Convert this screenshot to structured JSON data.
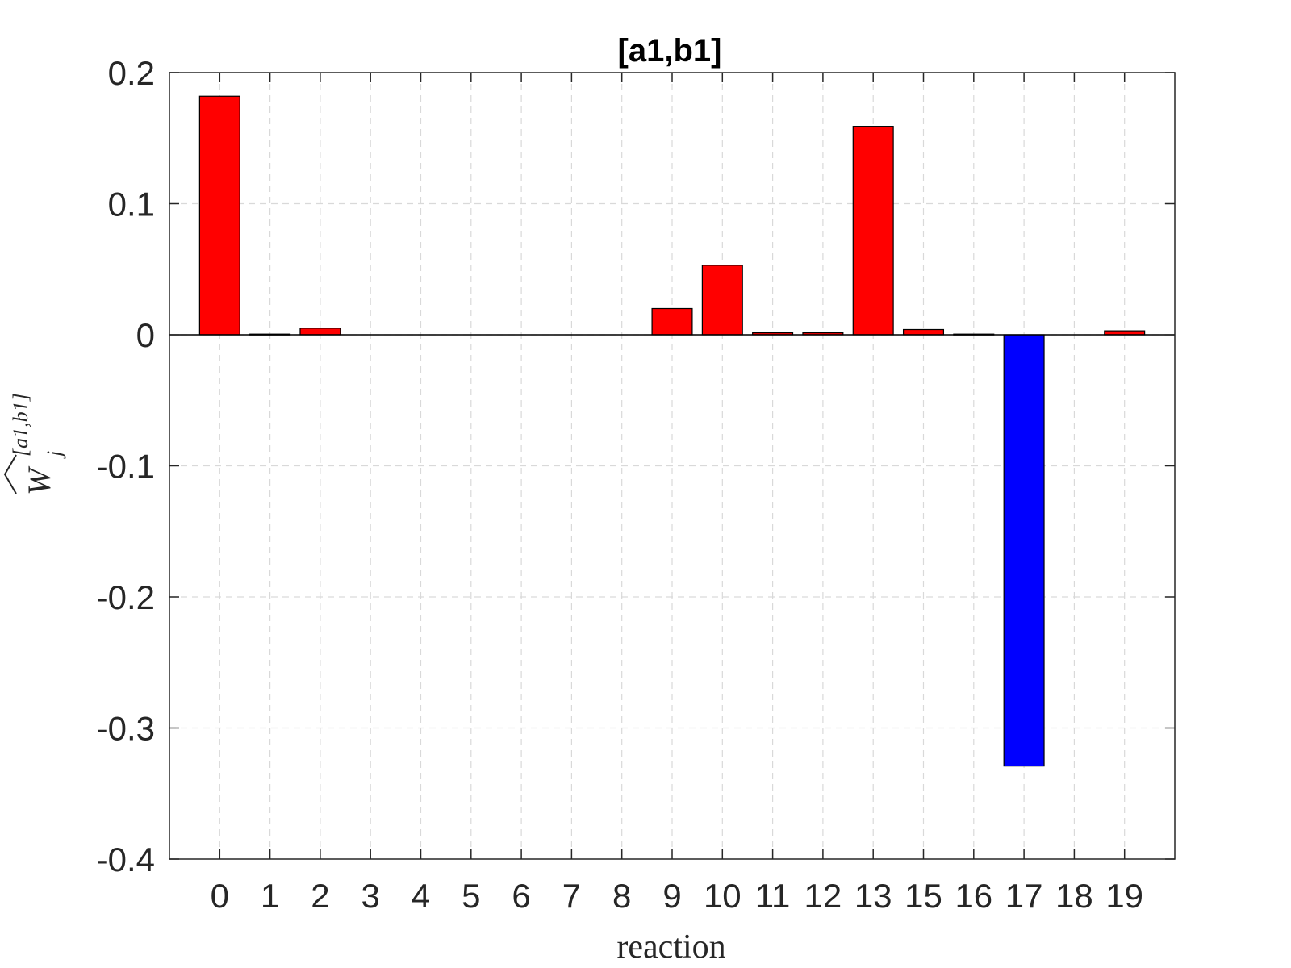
{
  "chart_data": {
    "type": "bar",
    "title": "[a1,b1]",
    "xlabel": "reaction",
    "ylabel": {
      "base": "W",
      "subscript": "j",
      "superscript": "[a1,b1]",
      "hat": true
    },
    "ylim": [
      -0.4,
      0.2
    ],
    "yticks": [
      "0.2",
      "0.1",
      "0",
      "-0.1",
      "-0.2",
      "-0.3",
      "-0.4"
    ],
    "grid": true,
    "categories": [
      "0",
      "1",
      "2",
      "3",
      "4",
      "5",
      "6",
      "7",
      "8",
      "9",
      "10",
      "11",
      "12",
      "13",
      "15",
      "16",
      "17",
      "18",
      "19"
    ],
    "values": [
      0.182,
      0.0005,
      0.005,
      0,
      0,
      0,
      0,
      0,
      0,
      0.02,
      0.053,
      0.0015,
      0.0015,
      0.159,
      0.004,
      0.0005,
      -0.329,
      0,
      0.003
    ],
    "colors": {
      "positive": "#ff0000",
      "negative": "#0000ff",
      "grid": "#d9d9d9",
      "axis": "#262626"
    }
  }
}
